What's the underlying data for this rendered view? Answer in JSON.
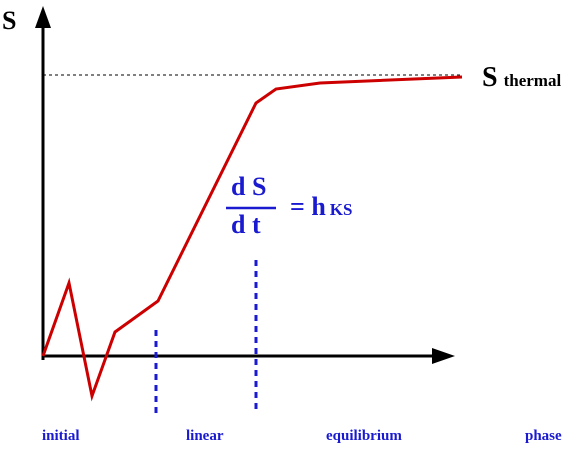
{
  "axes": {
    "y_label": "S",
    "saturation_label": "S",
    "saturation_subscript": "thermal"
  },
  "formula": {
    "numerator": "d S",
    "denominator": "d t",
    "rhs": "= h",
    "rhs_subscript": "KS"
  },
  "phases": [
    "initial",
    "linear",
    "equilibrium",
    "phase"
  ],
  "colors": {
    "curve": "#cc0000",
    "annotation": "#1a1ad0",
    "axis": "#000000"
  }
}
